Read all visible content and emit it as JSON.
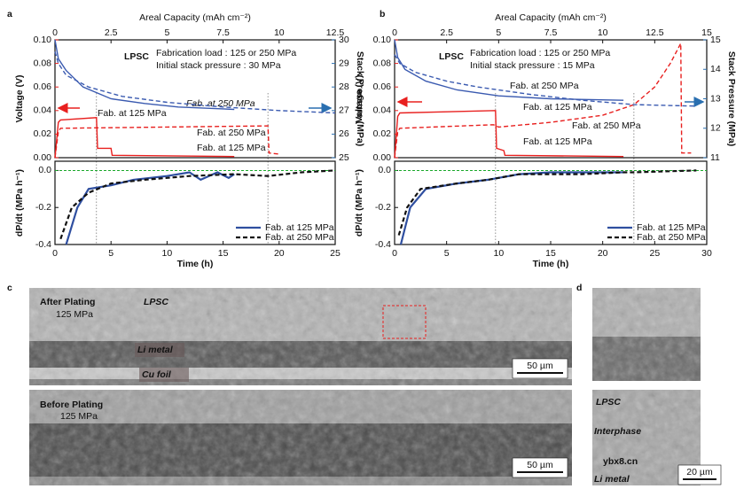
{
  "panel_labels": [
    "a",
    "b",
    "c",
    "d"
  ],
  "chart_data": [
    {
      "type": "line",
      "x2_label": "Areal Capacity (mAh cm⁻²)",
      "ylabel": "Voltage (V)",
      "y2label": "Stack Pressure (MPa)",
      "xlim": [
        0,
        25
      ],
      "x2lim": [
        0,
        12.5
      ],
      "x2ticks": [
        0,
        2.5,
        5,
        7.5,
        10,
        12.5
      ],
      "ylim": [
        0,
        0.1
      ],
      "yticks": [
        {
          "value": 0,
          "label": "0.00"
        },
        {
          "value": 0.02,
          "label": "0.02"
        },
        {
          "value": 0.04,
          "label": "0.04"
        },
        {
          "value": 0.06,
          "label": "0.06"
        },
        {
          "value": 0.08,
          "label": "0.08"
        },
        {
          "value": 0.1,
          "label": "0.10"
        }
      ],
      "y2lim": [
        25,
        30
      ],
      "y2ticks": [
        25,
        26,
        27,
        28,
        29,
        30
      ],
      "vlines": [
        3.7,
        19
      ],
      "annotations": [
        "LPSC",
        "Fabrication load : 125 or 250 MPa",
        "Initial stack pressure : 30 MPa",
        "Fab. at 250 MPa",
        "Fab. at 125 MPa",
        "Fab. at 250 MPa",
        "Fab. at 125 MPa"
      ],
      "series": [
        {
          "name": "Voltage, Fab. at 125 MPa",
          "color": "#e8201f",
          "dash": false,
          "x": [
            0,
            0.3,
            0.5,
            3.7,
            3.8,
            5,
            5.1,
            16
          ],
          "values": [
            0,
            0.03,
            0.032,
            0.034,
            0.008,
            0.008,
            0.002,
            0.001
          ]
        },
        {
          "name": "Voltage, Fab. at 250 MPa",
          "color": "#e8201f",
          "dash": true,
          "x": [
            0,
            0.3,
            0.5,
            10,
            19,
            19.1,
            20
          ],
          "values": [
            0,
            0.022,
            0.025,
            0.026,
            0.027,
            0.004,
            0.003
          ]
        },
        {
          "name": "Pressure, Fab. at 125 MPa",
          "color": "#3a5ab0",
          "dash": false,
          "axis": "y2",
          "x": [
            0,
            0.3,
            1,
            2.5,
            5,
            8,
            11,
            16
          ],
          "values": [
            30,
            29.2,
            28.7,
            28,
            27.5,
            27.3,
            27.15,
            27.05
          ]
        },
        {
          "name": "Pressure, Fab. at 250 MPa",
          "color": "#3a5ab0",
          "dash": true,
          "axis": "y2",
          "x": [
            0,
            0.3,
            1,
            3,
            6,
            10,
            15,
            20,
            25
          ],
          "values": [
            29.5,
            29,
            28.5,
            28,
            27.6,
            27.35,
            27.15,
            27.0,
            26.9
          ]
        }
      ]
    },
    {
      "type": "line",
      "xlabel": "Time (h)",
      "ylabel": "dP/dt (MPa h⁻¹)",
      "xlim": [
        0,
        25
      ],
      "xticks": [
        0,
        5,
        10,
        15,
        20,
        25
      ],
      "ylim": [
        -0.4,
        0.05
      ],
      "yticks": [
        -0.4,
        -0.2,
        {
          "value": 0,
          "label": "0.0"
        }
      ],
      "zero_line": true,
      "legend": "lower right",
      "series": [
        {
          "name": "Fab. at 125 MPa",
          "color": "#2f4fa0",
          "dash": false,
          "x": [
            1,
            2,
            3,
            5,
            7,
            10,
            12,
            13,
            14.5,
            15.5,
            16
          ],
          "values": [
            -0.4,
            -0.2,
            -0.1,
            -0.08,
            -0.05,
            -0.03,
            -0.01,
            -0.05,
            -0.01,
            -0.04,
            -0.02
          ]
        },
        {
          "name": "Fab. at 250 MPa",
          "color": "#111111",
          "dash": true,
          "x": [
            0.5,
            1.5,
            3,
            5,
            8,
            12,
            16,
            19,
            22,
            25
          ],
          "values": [
            -0.37,
            -0.2,
            -0.12,
            -0.07,
            -0.05,
            -0.03,
            -0.02,
            -0.03,
            -0.01,
            0
          ]
        }
      ]
    },
    {
      "type": "line",
      "x2_label": "Areal Capacity (mAh cm⁻²)",
      "ylabel": "Voltage (V)",
      "y2label": "Stack Pressure (MPa)",
      "xlim": [
        0,
        30
      ],
      "x2lim": [
        0,
        15
      ],
      "x2ticks": [
        0,
        2.5,
        5,
        7.5,
        10,
        12.5,
        15
      ],
      "ylim": [
        0,
        0.1
      ],
      "yticks": [
        {
          "value": 0,
          "label": "0.00"
        },
        {
          "value": 0.02,
          "label": "0.02"
        },
        {
          "value": 0.04,
          "label": "0.04"
        },
        {
          "value": 0.06,
          "label": "0.06"
        },
        {
          "value": 0.08,
          "label": "0.08"
        },
        {
          "value": 0.1,
          "label": "0.10"
        }
      ],
      "y2lim": [
        11,
        15
      ],
      "y2ticks": [
        11,
        12,
        13,
        14,
        15
      ],
      "vlines": [
        9.7,
        23
      ],
      "annotations": [
        "LPSC",
        "Fabrication load : 125 or 250 MPa",
        "Initial stack pressure : 15 MPa",
        "Fab. at 250 MPa",
        "Fab. at 125 MPa",
        "Fab. at 250 MPa",
        "Fab. at 125 MPa"
      ],
      "series": [
        {
          "name": "Voltage, Fab. at 125 MPa",
          "color": "#e8201f",
          "dash": false,
          "x": [
            0,
            0.3,
            0.5,
            9.7,
            9.8,
            10.5,
            10.6,
            22
          ],
          "values": [
            0,
            0.035,
            0.038,
            0.04,
            0.008,
            0.006,
            0.002,
            0.001
          ]
        },
        {
          "name": "Voltage, Fab. at 250 MPa",
          "color": "#e8201f",
          "dash": true,
          "x": [
            0,
            0.3,
            0.5,
            9.5,
            10,
            15,
            20,
            23,
            25,
            26.5,
            27.5,
            27.6,
            28.5
          ],
          "values": [
            0,
            0.022,
            0.025,
            0.028,
            0.026,
            0.03,
            0.036,
            0.045,
            0.06,
            0.08,
            0.097,
            0.004,
            0.004
          ]
        },
        {
          "name": "Pressure, Fab. at 125 MPa",
          "color": "#3a5ab0",
          "dash": false,
          "axis": "y2",
          "x": [
            0,
            0.3,
            1,
            3,
            6,
            10,
            15,
            22
          ],
          "values": [
            15,
            14.4,
            14,
            13.6,
            13.3,
            13.1,
            13.0,
            12.95
          ]
        },
        {
          "name": "Pressure, Fab. at 250 MPa",
          "color": "#3a5ab0",
          "dash": true,
          "axis": "y2",
          "x": [
            0,
            0.5,
            2,
            5,
            8,
            13,
            18,
            23,
            29
          ],
          "values": [
            14.5,
            14.2,
            13.9,
            13.6,
            13.4,
            13.15,
            12.95,
            12.8,
            12.75
          ]
        }
      ]
    },
    {
      "type": "line",
      "xlabel": "Time (h)",
      "ylabel": "dP/dt (MPa h⁻¹)",
      "xlim": [
        0,
        30
      ],
      "xticks": [
        0,
        5,
        10,
        15,
        20,
        25,
        30
      ],
      "ylim": [
        -0.4,
        0.05
      ],
      "yticks": [
        -0.4,
        -0.2,
        {
          "value": 0,
          "label": "0.0"
        }
      ],
      "zero_line": true,
      "legend": "lower right",
      "series": [
        {
          "name": "Fab. at 125 MPa",
          "color": "#2f4fa0",
          "dash": false,
          "x": [
            0.6,
            1.5,
            3,
            6,
            9,
            12,
            15,
            22
          ],
          "values": [
            -0.4,
            -0.2,
            -0.1,
            -0.07,
            -0.05,
            -0.02,
            -0.01,
            -0.01
          ]
        },
        {
          "name": "Fab. at 250 MPa",
          "color": "#111111",
          "dash": true,
          "x": [
            0.4,
            1.2,
            2.5,
            6,
            9,
            12,
            18,
            22,
            23,
            29
          ],
          "values": [
            -0.35,
            -0.2,
            -0.1,
            -0.07,
            -0.05,
            -0.02,
            -0.02,
            -0.01,
            -0.01,
            0
          ]
        }
      ]
    }
  ],
  "images": [
    {
      "labels": [
        "After Plating",
        "125 MPa",
        "LPSC",
        "Li metal",
        "Cu foil"
      ],
      "scale": "50 µm"
    },
    {
      "labels": [
        "Before Plating",
        "125 MPa"
      ],
      "scale": "50 µm"
    },
    {
      "labels": [],
      "scale": null
    },
    {
      "labels": [
        "LPSC",
        "Interphase",
        "Li metal"
      ],
      "scale": "20 µm"
    }
  ],
  "watermark": "ybx8.cn"
}
